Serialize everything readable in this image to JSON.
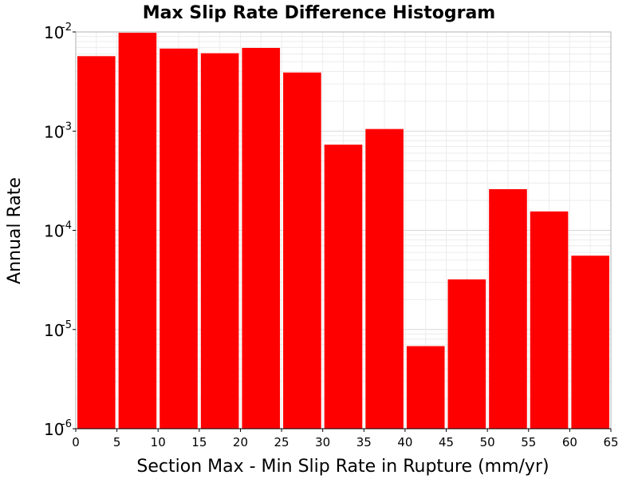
{
  "chart_data": {
    "type": "bar",
    "title": "Max Slip Rate Difference Histogram",
    "xlabel": "Section Max - Min Slip Rate in Rupture (mm/yr)",
    "ylabel": "Annual Rate",
    "yscale": "log",
    "xlim": [
      0,
      65
    ],
    "ylim": [
      1e-06,
      0.01
    ],
    "xticks": [
      "0",
      "5",
      "10",
      "15",
      "20",
      "25",
      "30",
      "35",
      "40",
      "45",
      "50",
      "55",
      "60",
      "65"
    ],
    "yticks": [
      {
        "value": 1e-06,
        "base": "10",
        "exp": "-6"
      },
      {
        "value": 1e-05,
        "base": "10",
        "exp": "-5"
      },
      {
        "value": 0.0001,
        "base": "10",
        "exp": "-4"
      },
      {
        "value": 0.001,
        "base": "10",
        "exp": "-3"
      },
      {
        "value": 0.01,
        "base": "10",
        "exp": "-2"
      }
    ],
    "grid": true,
    "bar_color": "#ff0000",
    "bins": [
      {
        "x0": 0,
        "x1": 5,
        "value": 0.0057
      },
      {
        "x0": 5,
        "x1": 10,
        "value": 0.0098
      },
      {
        "x0": 10,
        "x1": 15,
        "value": 0.0068
      },
      {
        "x0": 15,
        "x1": 20,
        "value": 0.0061
      },
      {
        "x0": 20,
        "x1": 25,
        "value": 0.0069
      },
      {
        "x0": 25,
        "x1": 30,
        "value": 0.0039
      },
      {
        "x0": 30,
        "x1": 35,
        "value": 0.00073
      },
      {
        "x0": 35,
        "x1": 40,
        "value": 0.00105
      },
      {
        "x0": 40,
        "x1": 45,
        "value": 6.8e-06
      },
      {
        "x0": 45,
        "x1": 50,
        "value": 3.2e-05
      },
      {
        "x0": 50,
        "x1": 55,
        "value": 0.00026
      },
      {
        "x0": 55,
        "x1": 60,
        "value": 0.000155
      },
      {
        "x0": 60,
        "x1": 65,
        "value": 5.55e-05
      }
    ]
  }
}
